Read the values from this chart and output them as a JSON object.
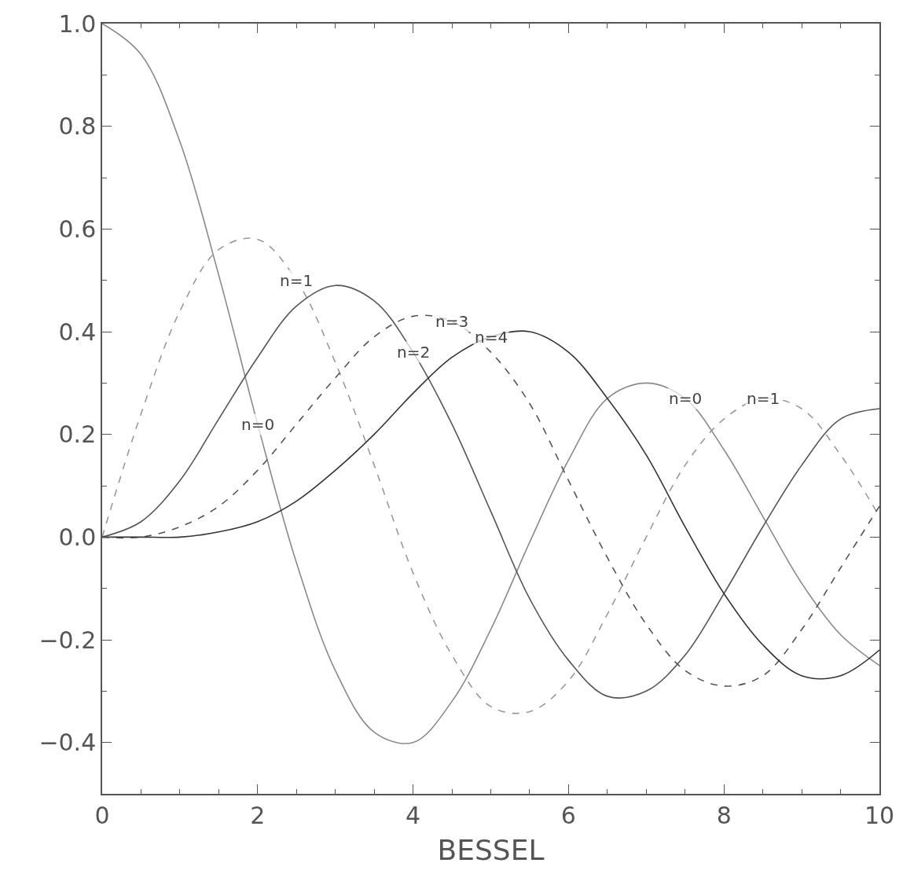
{
  "chart_data": {
    "type": "line",
    "xlabel": "BESSEL",
    "x": [
      0,
      0.5,
      1,
      1.5,
      2,
      2.5,
      3,
      3.5,
      4,
      4.5,
      5,
      5.5,
      6,
      6.5,
      7,
      7.5,
      8,
      8.5,
      9,
      9.5,
      10
    ],
    "series": [
      {
        "color": "#8a8a8a",
        "line_style": "solid",
        "values": [
          1,
          0.94,
          0.77,
          0.51,
          0.22,
          -0.05,
          -0.26,
          -0.38,
          -0.4,
          -0.32,
          -0.18,
          -0.01,
          0.15,
          0.27,
          0.3,
          0.27,
          0.17,
          0.04,
          -0.09,
          -0.19,
          -0.25
        ]
      },
      {
        "color": "#9a9a9a",
        "line_style": "dashed",
        "values": [
          0,
          0.24,
          0.44,
          0.56,
          0.58,
          0.5,
          0.34,
          0.14,
          -0.07,
          -0.23,
          -0.33,
          -0.34,
          -0.28,
          -0.15,
          0,
          0.14,
          0.23,
          0.27,
          0.25,
          0.16,
          0.04
        ]
      },
      {
        "color": "#555555",
        "line_style": "solid",
        "values": [
          0,
          0.03,
          0.11,
          0.23,
          0.35,
          0.45,
          0.49,
          0.46,
          0.36,
          0.22,
          0.05,
          -0.12,
          -0.24,
          -0.31,
          -0.3,
          -0.23,
          -0.11,
          0.02,
          0.14,
          0.23,
          0.25
        ]
      },
      {
        "color": "#555555",
        "line_style": "dashed",
        "values": [
          0,
          0,
          0.02,
          0.06,
          0.13,
          0.22,
          0.31,
          0.39,
          0.43,
          0.42,
          0.36,
          0.26,
          0.11,
          -0.04,
          -0.17,
          -0.26,
          -0.29,
          -0.27,
          -0.18,
          -0.06,
          0.06
        ]
      },
      {
        "color": "#333333",
        "line_style": "solid",
        "values": [
          0,
          0,
          0,
          0.01,
          0.03,
          0.07,
          0.13,
          0.2,
          0.28,
          0.35,
          0.39,
          0.4,
          0.36,
          0.27,
          0.16,
          0.02,
          -0.11,
          -0.21,
          -0.27,
          -0.27,
          -0.22
        ]
      }
    ],
    "annotations": [
      {
        "text": "n=0",
        "x": 2.0,
        "y": 0.22
      },
      {
        "text": "n=1",
        "x": 2.5,
        "y": 0.5
      },
      {
        "text": "n=2",
        "x": 4.0,
        "y": 0.36
      },
      {
        "text": "n=3",
        "x": 4.5,
        "y": 0.42
      },
      {
        "text": "n=4",
        "x": 5.0,
        "y": 0.39
      },
      {
        "text": "n=0",
        "x": 7.5,
        "y": 0.27
      },
      {
        "text": "n=1",
        "x": 8.5,
        "y": 0.27
      }
    ],
    "xlim": [
      0,
      10
    ],
    "xticks": [
      0,
      2,
      4,
      6,
      8,
      10
    ],
    "ylim": [
      -0.5,
      1.0
    ],
    "yticks": [
      {
        "value": -0.4,
        "label": "−0.4"
      },
      {
        "value": -0.2,
        "label": "−0.2"
      },
      {
        "value": 0,
        "label": "0.0"
      },
      {
        "value": 0.2,
        "label": "0.2"
      },
      {
        "value": 0.4,
        "label": "0.4"
      },
      {
        "value": 0.6,
        "label": "0.6"
      },
      {
        "value": 0.8,
        "label": "0.8"
      },
      {
        "value": 1.0,
        "label": "1.0"
      }
    ],
    "marker": "none"
  }
}
